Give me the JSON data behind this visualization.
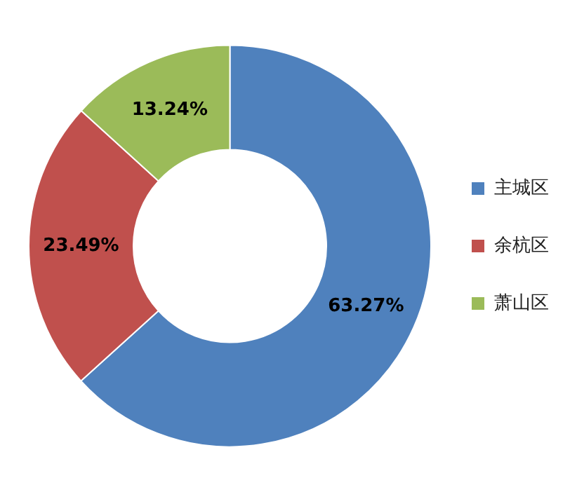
{
  "chart_data": {
    "type": "donut",
    "categories": [
      "主城区",
      "余杭区",
      "萧山区"
    ],
    "values": [
      63.27,
      23.49,
      13.24
    ],
    "colors": [
      "#4f81bd",
      "#c0504d",
      "#9bbb59"
    ],
    "value_labels": [
      "63.27%",
      "23.49%",
      "13.24%"
    ],
    "legend": "right"
  }
}
